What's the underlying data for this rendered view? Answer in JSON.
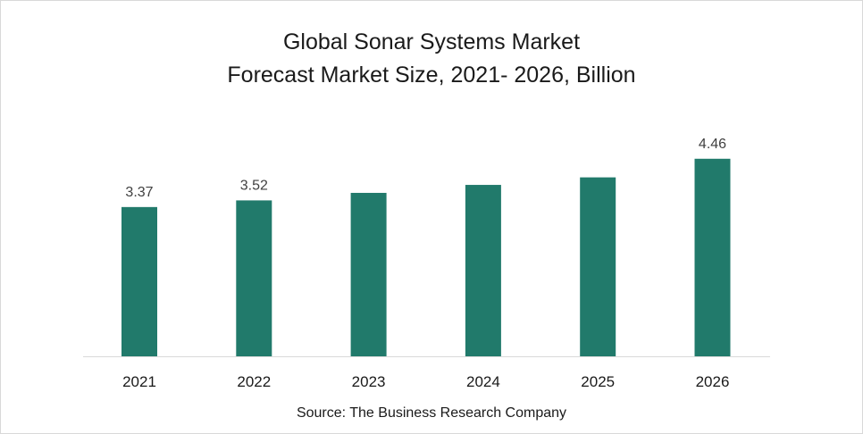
{
  "chart_data": {
    "type": "bar",
    "title": "Global Sonar Systems Market",
    "subtitle": "Forecast Market Size, 2021- 2026, Billion",
    "categories": [
      "2021",
      "2022",
      "2023",
      "2024",
      "2025",
      "2026"
    ],
    "values": [
      3.37,
      3.52,
      3.69,
      3.87,
      4.04,
      4.46
    ],
    "data_labels": [
      "3.37",
      "3.52",
      "",
      "",
      "",
      "4.46"
    ],
    "xlabel": "",
    "ylabel": "",
    "ylim": [
      0,
      5.5
    ],
    "grid": false,
    "bar_color": "#217a6b",
    "source": "Source: The Business Research Company"
  }
}
